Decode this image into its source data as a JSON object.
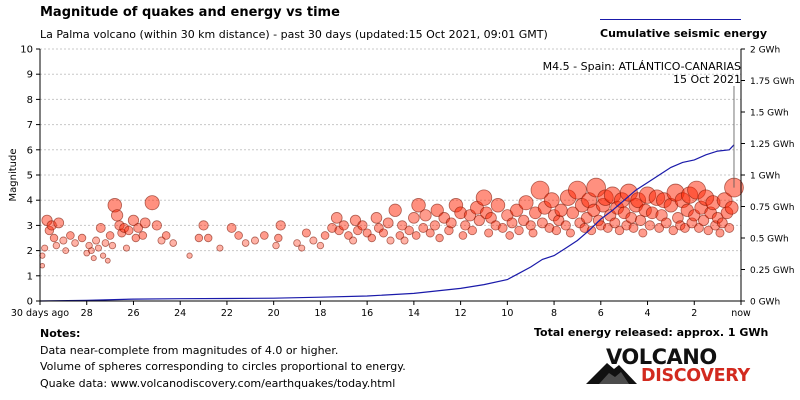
{
  "title": "Magnitude of quakes and energy vs time",
  "subtitle": "La Palma volcano (within 30 km distance) - past 30 days (updated:15 Oct 2021, 09:01 GMT)",
  "legend": {
    "line_label": "Cumulative seismic energy",
    "line_color": "#1a1aaa"
  },
  "annotation": {
    "line1": "M4.5 - Spain: ATLÁNTICO-CANARIAS",
    "line2": "15 Oct 2021"
  },
  "notes": {
    "title": "Notes:",
    "line1": "Data near-complete from magnitudes of 4.0 or higher.",
    "line2": "Volume of spheres corresponding to circles proportional to energy.",
    "line3": "Quake data: www.volcanodiscovery.com/earthquakes/today.html"
  },
  "total_energy": "Total energy released: approx. 1 GWh",
  "logo": {
    "line1": "VOLCANO",
    "line2": "DISCOVERY"
  },
  "colors": {
    "bubble_fill": "#ff2200",
    "bubble_stroke": "#7a1200",
    "energy_line": "#1a1aaa",
    "grid": "#c8c8c8",
    "logo_red": "#d22a1f"
  },
  "chart_data": {
    "type": "scatter",
    "title": "Magnitude of quakes and energy vs time",
    "xlabel": "days ago",
    "ylabel": "Magnitude",
    "y2label": "Cumulative seismic energy",
    "xlim": [
      30,
      0
    ],
    "ylim": [
      0,
      10
    ],
    "y2lim": [
      0,
      2
    ],
    "x_ticks": [
      30,
      28,
      26,
      24,
      22,
      20,
      18,
      16,
      14,
      12,
      10,
      8,
      6,
      4,
      2,
      0
    ],
    "x_tick_labels": [
      "30 days ago",
      "28",
      "26",
      "24",
      "22",
      "20",
      "18",
      "16",
      "14",
      "12",
      "10",
      "8",
      "6",
      "4",
      "2",
      "now"
    ],
    "y_ticks": [
      0,
      1,
      2,
      3,
      4,
      5,
      6,
      7,
      8,
      9,
      10
    ],
    "y2_ticks": [
      0,
      0.25,
      0.5,
      0.75,
      1,
      1.25,
      1.5,
      1.75,
      2
    ],
    "y2_tick_labels": [
      "0 GWh",
      "0.25 GWh",
      "0.5 GWh",
      "0.75 GWh",
      "1 GWh",
      "1.25 GWh",
      "1.5 GWh",
      "1.75 GWh",
      "2 GWh"
    ],
    "series": [
      {
        "name": "Earthquakes",
        "kind": "bubble",
        "points": [
          [
            29.9,
            1.8
          ],
          [
            29.9,
            1.4
          ],
          [
            29.8,
            2.1
          ],
          [
            29.7,
            3.2
          ],
          [
            29.6,
            2.8
          ],
          [
            29.5,
            3.0
          ],
          [
            29.4,
            2.5
          ],
          [
            29.3,
            2.2
          ],
          [
            29.2,
            3.1
          ],
          [
            29.0,
            2.4
          ],
          [
            28.9,
            2.0
          ],
          [
            28.7,
            2.6
          ],
          [
            28.5,
            2.3
          ],
          [
            28.2,
            2.5
          ],
          [
            28.0,
            1.9
          ],
          [
            27.9,
            2.2
          ],
          [
            27.8,
            2.0
          ],
          [
            27.7,
            1.7
          ],
          [
            27.6,
            2.4
          ],
          [
            27.5,
            2.1
          ],
          [
            27.4,
            2.9
          ],
          [
            27.3,
            1.8
          ],
          [
            27.2,
            2.3
          ],
          [
            27.1,
            1.6
          ],
          [
            27.0,
            2.6
          ],
          [
            26.9,
            2.2
          ],
          [
            26.8,
            3.8
          ],
          [
            26.7,
            3.4
          ],
          [
            26.6,
            3.0
          ],
          [
            26.5,
            2.7
          ],
          [
            26.4,
            2.9
          ],
          [
            26.3,
            2.1
          ],
          [
            26.2,
            2.8
          ],
          [
            26.0,
            3.2
          ],
          [
            25.9,
            2.5
          ],
          [
            25.8,
            2.9
          ],
          [
            25.6,
            2.6
          ],
          [
            25.5,
            3.1
          ],
          [
            25.2,
            3.9
          ],
          [
            25.0,
            3.0
          ],
          [
            24.8,
            2.4
          ],
          [
            24.6,
            2.6
          ],
          [
            24.3,
            2.3
          ],
          [
            23.6,
            1.8
          ],
          [
            23.2,
            2.5
          ],
          [
            23.0,
            3.0
          ],
          [
            22.8,
            2.5
          ],
          [
            22.3,
            2.1
          ],
          [
            21.8,
            2.9
          ],
          [
            21.5,
            2.6
          ],
          [
            21.2,
            2.3
          ],
          [
            20.8,
            2.4
          ],
          [
            20.4,
            2.6
          ],
          [
            19.9,
            2.2
          ],
          [
            19.8,
            2.5
          ],
          [
            19.7,
            3.0
          ],
          [
            19.0,
            2.3
          ],
          [
            18.8,
            2.1
          ],
          [
            18.6,
            2.7
          ],
          [
            18.3,
            2.4
          ],
          [
            18.0,
            2.2
          ],
          [
            17.8,
            2.6
          ],
          [
            17.5,
            2.9
          ],
          [
            17.3,
            3.3
          ],
          [
            17.2,
            2.8
          ],
          [
            17.0,
            3.0
          ],
          [
            16.8,
            2.6
          ],
          [
            16.6,
            2.4
          ],
          [
            16.5,
            3.2
          ],
          [
            16.4,
            2.8
          ],
          [
            16.2,
            3.0
          ],
          [
            16.0,
            2.7
          ],
          [
            15.8,
            2.5
          ],
          [
            15.6,
            3.3
          ],
          [
            15.5,
            2.9
          ],
          [
            15.3,
            2.7
          ],
          [
            15.1,
            3.1
          ],
          [
            15.0,
            2.4
          ],
          [
            14.8,
            3.6
          ],
          [
            14.6,
            2.6
          ],
          [
            14.5,
            3.0
          ],
          [
            14.4,
            2.4
          ],
          [
            14.2,
            2.8
          ],
          [
            14.0,
            3.3
          ],
          [
            13.9,
            2.6
          ],
          [
            13.8,
            3.8
          ],
          [
            13.6,
            2.9
          ],
          [
            13.5,
            3.4
          ],
          [
            13.3,
            2.7
          ],
          [
            13.1,
            3.0
          ],
          [
            13.0,
            3.6
          ],
          [
            12.9,
            2.5
          ],
          [
            12.7,
            3.3
          ],
          [
            12.5,
            2.8
          ],
          [
            12.4,
            3.1
          ],
          [
            12.2,
            3.8
          ],
          [
            12.0,
            3.5
          ],
          [
            11.9,
            2.6
          ],
          [
            11.8,
            3.0
          ],
          [
            11.6,
            3.4
          ],
          [
            11.5,
            2.8
          ],
          [
            11.3,
            3.7
          ],
          [
            11.2,
            3.2
          ],
          [
            11.0,
            4.1
          ],
          [
            10.9,
            3.5
          ],
          [
            10.8,
            2.7
          ],
          [
            10.7,
            3.3
          ],
          [
            10.5,
            3.0
          ],
          [
            10.4,
            3.8
          ],
          [
            10.2,
            2.9
          ],
          [
            10.0,
            3.4
          ],
          [
            9.9,
            2.6
          ],
          [
            9.8,
            3.1
          ],
          [
            9.6,
            3.6
          ],
          [
            9.5,
            2.8
          ],
          [
            9.3,
            3.2
          ],
          [
            9.2,
            3.9
          ],
          [
            9.0,
            3.0
          ],
          [
            8.9,
            2.7
          ],
          [
            8.8,
            3.5
          ],
          [
            8.6,
            4.4
          ],
          [
            8.5,
            3.1
          ],
          [
            8.4,
            3.7
          ],
          [
            8.2,
            2.9
          ],
          [
            8.1,
            4.0
          ],
          [
            8.0,
            3.4
          ],
          [
            7.9,
            2.8
          ],
          [
            7.8,
            3.2
          ],
          [
            7.7,
            3.6
          ],
          [
            7.5,
            3.0
          ],
          [
            7.4,
            4.1
          ],
          [
            7.3,
            2.7
          ],
          [
            7.2,
            3.5
          ],
          [
            7.0,
            4.4
          ],
          [
            6.9,
            3.1
          ],
          [
            6.8,
            3.8
          ],
          [
            6.7,
            2.9
          ],
          [
            6.6,
            3.3
          ],
          [
            6.5,
            4.0
          ],
          [
            6.4,
            2.8
          ],
          [
            6.3,
            3.6
          ],
          [
            6.2,
            4.5
          ],
          [
            6.1,
            3.2
          ],
          [
            6.0,
            3.0
          ],
          [
            5.9,
            3.8
          ],
          [
            5.8,
            4.1
          ],
          [
            5.7,
            2.9
          ],
          [
            5.6,
            3.4
          ],
          [
            5.5,
            4.2
          ],
          [
            5.4,
            3.1
          ],
          [
            5.3,
            3.7
          ],
          [
            5.2,
            2.8
          ],
          [
            5.1,
            4.0
          ],
          [
            5.0,
            3.5
          ],
          [
            4.9,
            3.0
          ],
          [
            4.8,
            4.3
          ],
          [
            4.7,
            3.3
          ],
          [
            4.6,
            2.9
          ],
          [
            4.5,
            3.8
          ],
          [
            4.4,
            4.0
          ],
          [
            4.3,
            3.2
          ],
          [
            4.2,
            2.7
          ],
          [
            4.1,
            3.6
          ],
          [
            4.0,
            4.2
          ],
          [
            3.9,
            3.0
          ],
          [
            3.8,
            3.5
          ],
          [
            3.6,
            4.1
          ],
          [
            3.5,
            2.9
          ],
          [
            3.4,
            3.4
          ],
          [
            3.3,
            4.0
          ],
          [
            3.2,
            3.1
          ],
          [
            3.0,
            3.8
          ],
          [
            2.9,
            2.8
          ],
          [
            2.8,
            4.3
          ],
          [
            2.7,
            3.3
          ],
          [
            2.6,
            3.0
          ],
          [
            2.5,
            4.0
          ],
          [
            2.4,
            2.9
          ],
          [
            2.3,
            3.6
          ],
          [
            2.2,
            4.2
          ],
          [
            2.1,
            3.1
          ],
          [
            2.0,
            3.4
          ],
          [
            1.9,
            4.4
          ],
          [
            1.8,
            2.9
          ],
          [
            1.7,
            3.7
          ],
          [
            1.6,
            3.2
          ],
          [
            1.5,
            4.1
          ],
          [
            1.4,
            2.8
          ],
          [
            1.3,
            3.5
          ],
          [
            1.2,
            3.9
          ],
          [
            1.1,
            3.0
          ],
          [
            1.0,
            3.3
          ],
          [
            0.9,
            2.7
          ],
          [
            0.8,
            3.1
          ],
          [
            0.7,
            4.0
          ],
          [
            0.6,
            3.5
          ],
          [
            0.5,
            2.9
          ],
          [
            0.4,
            3.7
          ],
          [
            0.3,
            4.5
          ]
        ]
      },
      {
        "name": "Cumulative seismic energy",
        "kind": "line",
        "axis": "y2",
        "points": [
          [
            30,
            0
          ],
          [
            28,
            0.005
          ],
          [
            26,
            0.015
          ],
          [
            24,
            0.018
          ],
          [
            22,
            0.02
          ],
          [
            20,
            0.022
          ],
          [
            18,
            0.03
          ],
          [
            16,
            0.04
          ],
          [
            14,
            0.06
          ],
          [
            13,
            0.08
          ],
          [
            12,
            0.1
          ],
          [
            11,
            0.13
          ],
          [
            10,
            0.17
          ],
          [
            9.5,
            0.22
          ],
          [
            9,
            0.27
          ],
          [
            8.5,
            0.33
          ],
          [
            8,
            0.36
          ],
          [
            7.5,
            0.42
          ],
          [
            7,
            0.48
          ],
          [
            6.5,
            0.56
          ],
          [
            6,
            0.65
          ],
          [
            5.5,
            0.72
          ],
          [
            5,
            0.8
          ],
          [
            4.5,
            0.88
          ],
          [
            4,
            0.94
          ],
          [
            3.5,
            1.0
          ],
          [
            3,
            1.06
          ],
          [
            2.5,
            1.1
          ],
          [
            2,
            1.12
          ],
          [
            1.5,
            1.16
          ],
          [
            1,
            1.19
          ],
          [
            0.5,
            1.2
          ],
          [
            0.3,
            1.24
          ]
        ]
      }
    ],
    "annotations": [
      {
        "text": "M4.5 - Spain: ATLÁNTICO-CANARIAS",
        "date": "15 Oct 2021",
        "x": 0.3,
        "magnitude": 4.5
      }
    ]
  }
}
